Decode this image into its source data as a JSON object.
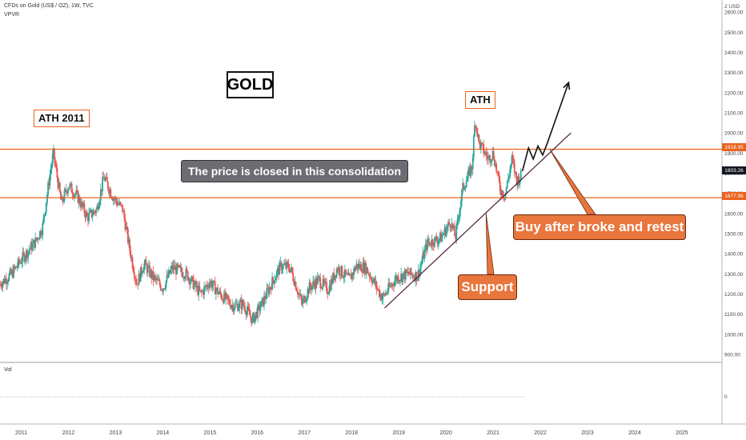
{
  "header": {
    "title": "CFDs on Gold (US$ / OZ), 1W, TVC",
    "indicator": "VPVR",
    "volume_label": "Vol"
  },
  "annotations": {
    "gold_label": "GOLD",
    "ath_2011": "ATH 2011",
    "ath": "ATH",
    "consolidation": "The price is closed in this consolidation",
    "buy": "Buy after broke and retest",
    "support": "Support"
  },
  "price_tags": {
    "resistance": "1918.95",
    "current": "1803.26",
    "support": "1677.96"
  },
  "colors": {
    "up": "#26a69a",
    "down": "#ef5350",
    "level_line": "#e8631f",
    "trend_line": "#4a1a3a",
    "note_orange": "#e8763d",
    "note_grey": "#6c6c72",
    "current_tag": "#131722"
  },
  "chart_data": {
    "type": "candlestick",
    "symbol": "CFDs on Gold (US$ / OZ)",
    "interval": "1W",
    "currency": "USD",
    "y_axis": {
      "range": [
        860,
        2660
      ],
      "ticks": [
        900,
        1000,
        1100,
        1200,
        1300,
        1400,
        1500,
        1600,
        1700,
        1800,
        1900,
        2000,
        2100,
        2200,
        2300,
        2400,
        2500,
        2600
      ]
    },
    "x_axis": {
      "range": [
        2010.55,
        2025.85
      ],
      "ticks": [
        "2011",
        "2012",
        "2013",
        "2014",
        "2015",
        "2016",
        "2017",
        "2018",
        "2019",
        "2020",
        "2021",
        "2022",
        "2023",
        "2024",
        "2025"
      ]
    },
    "price_path": [
      [
        2010.55,
        1250
      ],
      [
        2010.8,
        1300
      ],
      [
        2011.0,
        1370
      ],
      [
        2011.3,
        1460
      ],
      [
        2011.45,
        1530
      ],
      [
        2011.6,
        1780
      ],
      [
        2011.68,
        1900
      ],
      [
        2011.85,
        1650
      ],
      [
        2012.0,
        1740
      ],
      [
        2012.2,
        1680
      ],
      [
        2012.4,
        1580
      ],
      [
        2012.6,
        1620
      ],
      [
        2012.75,
        1780
      ],
      [
        2012.95,
        1680
      ],
      [
        2013.15,
        1620
      ],
      [
        2013.3,
        1420
      ],
      [
        2013.45,
        1250
      ],
      [
        2013.6,
        1350
      ],
      [
        2013.8,
        1280
      ],
      [
        2014.0,
        1230
      ],
      [
        2014.2,
        1330
      ],
      [
        2014.5,
        1300
      ],
      [
        2014.8,
        1200
      ],
      [
        2015.0,
        1260
      ],
      [
        2015.2,
        1200
      ],
      [
        2015.5,
        1140
      ],
      [
        2015.7,
        1150
      ],
      [
        2015.9,
        1070
      ],
      [
        2016.1,
        1150
      ],
      [
        2016.3,
        1250
      ],
      [
        2016.5,
        1340
      ],
      [
        2016.7,
        1330
      ],
      [
        2016.95,
        1150
      ],
      [
        2017.1,
        1230
      ],
      [
        2017.3,
        1270
      ],
      [
        2017.5,
        1220
      ],
      [
        2017.7,
        1330
      ],
      [
        2017.95,
        1270
      ],
      [
        2018.1,
        1340
      ],
      [
        2018.3,
        1330
      ],
      [
        2018.45,
        1270
      ],
      [
        2018.65,
        1180
      ],
      [
        2018.95,
        1280
      ],
      [
        2019.2,
        1300
      ],
      [
        2019.4,
        1290
      ],
      [
        2019.6,
        1450
      ],
      [
        2019.9,
        1480
      ],
      [
        2020.1,
        1560
      ],
      [
        2020.2,
        1480
      ],
      [
        2020.35,
        1720
      ],
      [
        2020.55,
        1830
      ],
      [
        2020.62,
        2070
      ],
      [
        2020.7,
        1950
      ],
      [
        2020.9,
        1870
      ],
      [
        2021.0,
        1900
      ],
      [
        2021.15,
        1720
      ],
      [
        2021.25,
        1690
      ],
      [
        2021.4,
        1870
      ],
      [
        2021.5,
        1760
      ],
      [
        2021.6,
        1790
      ]
    ],
    "levels": [
      {
        "label": "1918.95",
        "value": 1918.95
      },
      {
        "label": "1677.96",
        "value": 1677.96
      }
    ],
    "current_price": 1803.26,
    "trendline": {
      "start": [
        2018.7,
        1130
      ],
      "end": [
        2022.65,
        2000
      ]
    },
    "projection_path": [
      [
        2021.62,
        1810
      ],
      [
        2021.75,
        1925
      ],
      [
        2021.85,
        1870
      ],
      [
        2021.95,
        1935
      ],
      [
        2022.05,
        1890
      ],
      [
        2022.15,
        1950
      ]
    ],
    "projection_arrow_up": [
      [
        2022.15,
        1950
      ],
      [
        2022.6,
        2250
      ]
    ],
    "projection_to_level": [
      [
        2022.25,
        1925
      ]
    ]
  }
}
